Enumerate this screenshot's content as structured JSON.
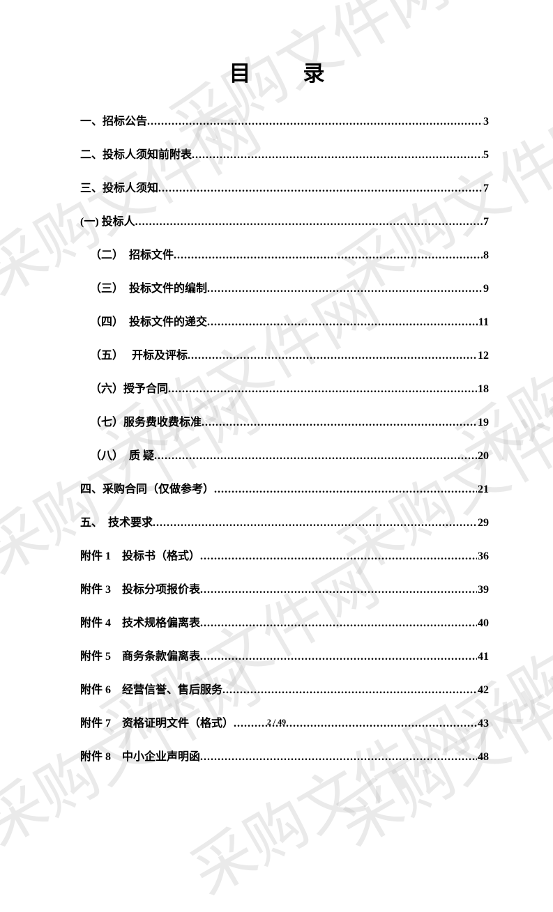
{
  "title": "目　录",
  "watermark_text": "采购文件网",
  "toc_entries": [
    {
      "label": "一、招标公告",
      "page": "3",
      "indent": 0
    },
    {
      "label": "二、投标人须知前附表",
      "page": "5",
      "indent": 0
    },
    {
      "label": "三、投标人须知",
      "page": "7",
      "indent": 0
    },
    {
      "label": "(一) 投标人",
      "page": "7",
      "indent": 0
    },
    {
      "label": "（二）　招标文件",
      "page": " 8",
      "indent": 1
    },
    {
      "label": "（三）　投标文件的编制",
      "page": "9",
      "indent": 1
    },
    {
      "label": "（四）　投标文件的递交",
      "page": "11",
      "indent": 1
    },
    {
      "label": "（五）　 开标及评标",
      "page": " 12",
      "indent": 1
    },
    {
      "label": "（六）授予合同",
      "page": " 18",
      "indent": 1
    },
    {
      "label": "（七）服务费收费标准",
      "page": "19",
      "indent": 1
    },
    {
      "label": "（八）　质 疑",
      "page": " 20",
      "indent": 1
    },
    {
      "label": "四、采购合同（仅做参考）",
      "page": "21",
      "indent": 0
    },
    {
      "label": "五、　技术要求",
      "page": "29",
      "indent": 0
    },
    {
      "label": "附件 1　投标书（格式）",
      "page": " 36",
      "indent": 0
    },
    {
      "label": "附件 3　投标分项报价表",
      "page": "39",
      "indent": 0
    },
    {
      "label": "附件 4　技术规格偏离表",
      "page": " 40",
      "indent": 0
    },
    {
      "label": "附件 5　商务条款偏离表",
      "page": " 41",
      "indent": 0
    },
    {
      "label": "附件 6　经营信誉、售后服务",
      "page": " 42",
      "indent": 0
    },
    {
      "label": "附件 7　资格证明文件（格式）",
      "page": " 43",
      "indent": 0
    },
    {
      "label": "附件 8　中小企业声明函",
      "page": " 48",
      "indent": 0
    }
  ],
  "footer": "2 / 49",
  "colors": {
    "background": "#ffffff",
    "text": "#000000",
    "watermark": "rgba(180, 180, 180, 0.28)"
  }
}
